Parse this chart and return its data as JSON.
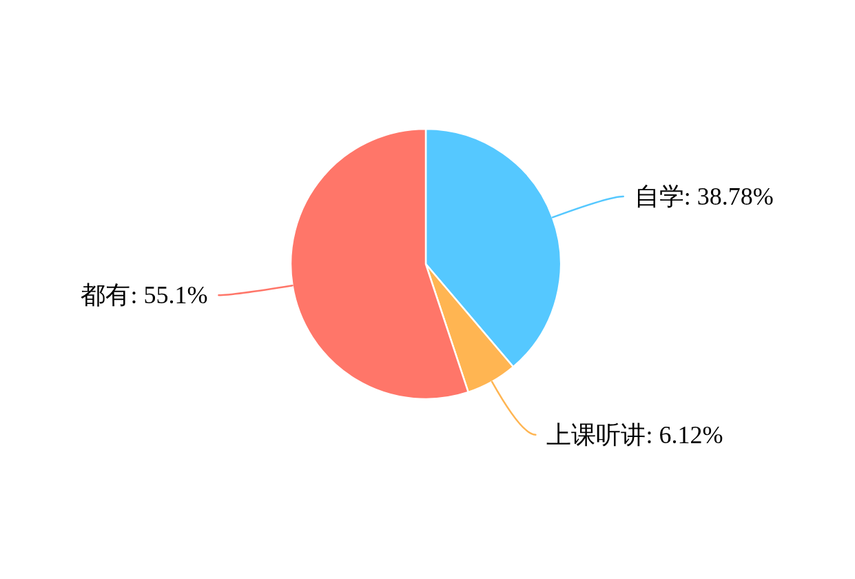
{
  "chart_data": {
    "type": "pie",
    "categories": [
      "自学",
      "上课听讲",
      "都有"
    ],
    "values": [
      38.78,
      6.12,
      55.1
    ],
    "value_labels": [
      "38.78%",
      "6.12%",
      "55.1%"
    ],
    "colors": [
      "#55c8ff",
      "#ffb552",
      "#ff7669"
    ]
  }
}
